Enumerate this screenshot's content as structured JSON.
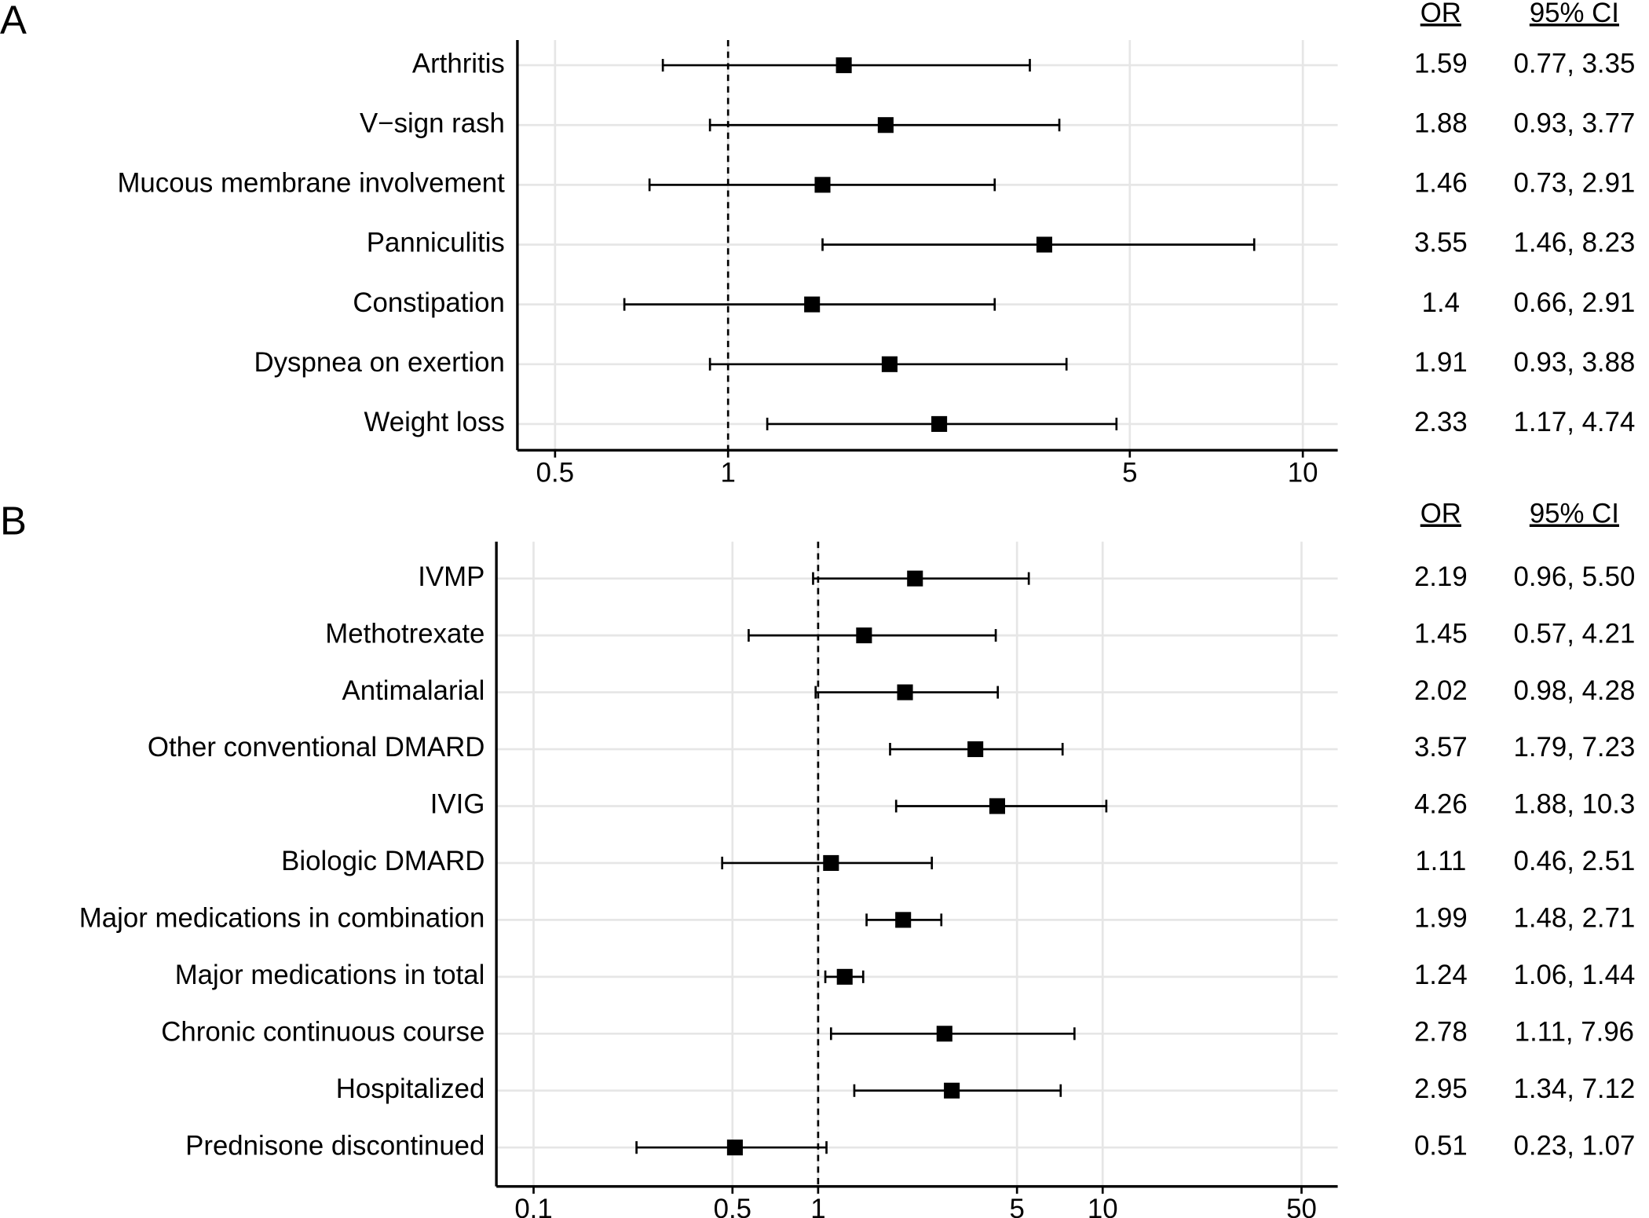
{
  "chart_data": [
    {
      "type": "forest",
      "panel_label": "A",
      "or_header": "OR",
      "ci_header": "95% CI",
      "categories": [
        "Arthritis",
        "V−sign rash",
        "Mucous membrane involvement",
        "Panniculitis",
        "Constipation",
        "Dyspnea on exertion",
        "Weight loss"
      ],
      "values": [
        1.59,
        1.88,
        1.46,
        3.55,
        1.4,
        1.91,
        2.33
      ],
      "ci_lower": [
        0.77,
        0.93,
        0.73,
        1.46,
        0.66,
        0.93,
        1.17
      ],
      "ci_upper": [
        3.35,
        3.77,
        2.91,
        8.23,
        2.91,
        3.88,
        4.74
      ],
      "ci_labels": [
        "0.77, 3.35",
        "0.93, 3.77",
        "0.73, 2.91",
        "1.46, 8.23",
        "0.66, 2.91",
        "0.93, 3.88",
        "1.17, 4.74"
      ],
      "log_scale": true,
      "xlim": [
        0.43,
        11.5
      ],
      "xticks": [
        0.5,
        1,
        5,
        10
      ],
      "reference_line": 1,
      "grid": true,
      "color": "#000000"
    },
    {
      "type": "forest",
      "panel_label": "B",
      "or_header": "OR",
      "ci_header": "95% CI",
      "categories": [
        "IVMP",
        "Methotrexate",
        "Antimalarial",
        "Other conventional DMARD",
        "IVIG",
        "Biologic DMARD",
        "Major medications in combination",
        "Major medications in total",
        "Chronic continuous course",
        "Hospitalized",
        "Prednisone discontinued"
      ],
      "values": [
        2.19,
        1.45,
        2.02,
        3.57,
        4.26,
        1.11,
        1.99,
        1.24,
        2.78,
        2.95,
        0.51
      ],
      "ci_lower": [
        0.96,
        0.57,
        0.98,
        1.79,
        1.88,
        0.46,
        1.48,
        1.06,
        1.11,
        1.34,
        0.23
      ],
      "ci_upper": [
        5.5,
        4.21,
        4.28,
        7.23,
        10.3,
        2.51,
        2.71,
        1.44,
        7.96,
        7.12,
        1.07
      ],
      "ci_labels": [
        "0.96, 5.50",
        "0.57, 4.21",
        "0.98, 4.28",
        "1.79, 7.23",
        "1.88, 10.3",
        "0.46, 2.51",
        "1.48, 2.71",
        "1.06, 1.44",
        "1.11, 7.96",
        "1.34, 7.12",
        "0.23, 1.07"
      ],
      "log_scale": true,
      "xlim": [
        0.074,
        67
      ],
      "xticks": [
        0.1,
        0.5,
        1,
        5,
        10,
        50
      ],
      "reference_line": 1,
      "grid": true,
      "color": "#000000"
    }
  ]
}
